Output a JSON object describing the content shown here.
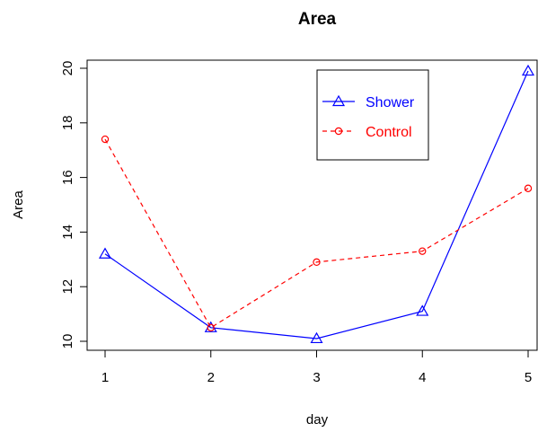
{
  "chart_data": {
    "type": "line",
    "title": "Area",
    "xlabel": "day",
    "ylabel": "Area",
    "x": [
      1,
      2,
      3,
      4,
      5
    ],
    "xlim": [
      1,
      5
    ],
    "ylim": [
      10,
      20
    ],
    "x_ticks": [
      1,
      2,
      3,
      4,
      5
    ],
    "y_ticks": [
      10,
      12,
      14,
      16,
      18,
      20
    ],
    "grid": false,
    "legend_position": "top-right",
    "series": [
      {
        "name": "Shower",
        "values": [
          13.2,
          10.5,
          10.1,
          11.1,
          19.9
        ],
        "color": "#0000ff",
        "line_style": "solid",
        "marker": "triangle"
      },
      {
        "name": "Control",
        "values": [
          17.4,
          10.5,
          12.9,
          13.3,
          15.6
        ],
        "color": "#ff0000",
        "line_style": "dashed",
        "marker": "circle"
      }
    ]
  }
}
